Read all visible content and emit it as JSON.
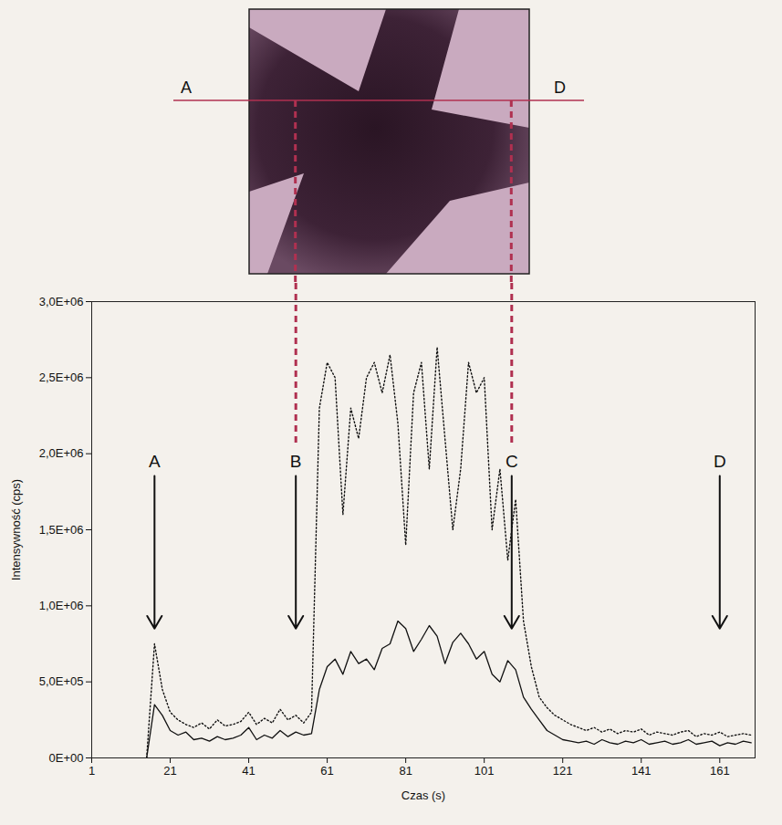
{
  "chart_data": {
    "type": "line",
    "x_label": "Czas (s)",
    "y_label": "Intensywność (cps)",
    "x": [
      15,
      17,
      19,
      21,
      23,
      25,
      27,
      29,
      31,
      33,
      35,
      37,
      39,
      41,
      43,
      45,
      47,
      49,
      51,
      53,
      55,
      57,
      59,
      61,
      63,
      65,
      67,
      69,
      71,
      73,
      75,
      77,
      79,
      81,
      83,
      85,
      87,
      89,
      91,
      93,
      95,
      97,
      99,
      101,
      103,
      105,
      107,
      109,
      111,
      113,
      115,
      117,
      119,
      121,
      123,
      125,
      127,
      129,
      131,
      133,
      135,
      137,
      139,
      141,
      143,
      145,
      147,
      149,
      151,
      153,
      155,
      157,
      159,
      161,
      163,
      165,
      167,
      169
    ],
    "series": [
      {
        "color": "#111111",
        "line_style": "dotted",
        "values": [
          0,
          750000,
          450000,
          300000,
          250000,
          220000,
          200000,
          230000,
          190000,
          250000,
          210000,
          220000,
          240000,
          300000,
          220000,
          260000,
          230000,
          320000,
          250000,
          280000,
          230000,
          300000,
          2300000,
          2600000,
          2500000,
          1600000,
          2300000,
          2100000,
          2500000,
          2600000,
          2400000,
          2650000,
          2200000,
          1400000,
          2400000,
          2600000,
          1900000,
          2700000,
          2100000,
          1500000,
          1900000,
          2600000,
          2400000,
          2500000,
          1500000,
          1900000,
          1300000,
          1700000,
          900000,
          600000,
          400000,
          330000,
          280000,
          250000,
          220000,
          200000,
          180000,
          200000,
          170000,
          190000,
          160000,
          180000,
          170000,
          190000,
          150000,
          170000,
          160000,
          150000,
          170000,
          180000,
          140000,
          160000,
          150000,
          170000,
          140000,
          150000,
          160000,
          150000
        ]
      },
      {
        "color": "#111111",
        "line_style": "solid",
        "values": [
          0,
          350000,
          280000,
          180000,
          150000,
          170000,
          120000,
          130000,
          110000,
          140000,
          120000,
          130000,
          150000,
          200000,
          120000,
          150000,
          130000,
          180000,
          140000,
          170000,
          150000,
          160000,
          450000,
          600000,
          650000,
          550000,
          700000,
          620000,
          650000,
          580000,
          720000,
          750000,
          900000,
          850000,
          700000,
          780000,
          870000,
          800000,
          620000,
          760000,
          820000,
          750000,
          650000,
          700000,
          550000,
          500000,
          640000,
          580000,
          400000,
          320000,
          250000,
          180000,
          150000,
          120000,
          110000,
          100000,
          110000,
          90000,
          120000,
          100000,
          90000,
          110000,
          100000,
          120000,
          90000,
          100000,
          110000,
          90000,
          100000,
          120000,
          90000,
          100000,
          110000,
          80000,
          100000,
          90000,
          110000,
          100000
        ]
      }
    ],
    "xlim": [
      1,
      170
    ],
    "xticks": [
      1,
      21,
      41,
      61,
      81,
      101,
      121,
      141,
      161
    ],
    "ylim": [
      0,
      3000000
    ],
    "yticks": [
      {
        "value": 0,
        "label": "0E+00"
      },
      {
        "value": 500000,
        "label": "5,0E+05"
      },
      {
        "value": 1000000,
        "label": "1,0E+06"
      },
      {
        "value": 1500000,
        "label": "1,5E+06"
      },
      {
        "value": 2000000,
        "label": "2,0E+06"
      },
      {
        "value": 2500000,
        "label": "2,5E+06"
      },
      {
        "value": 3000000,
        "label": "3,0E+06"
      }
    ],
    "grid": false,
    "annotations": [
      {
        "text": "A",
        "x": 17,
        "y": 1950000,
        "arrow_to": 850000
      },
      {
        "text": "B",
        "x": 53,
        "y": 1950000,
        "arrow_to": 850000
      },
      {
        "text": "C",
        "x": 108,
        "y": 1950000,
        "arrow_to": 850000
      },
      {
        "text": "D",
        "x": 161,
        "y": 1950000,
        "arrow_to": 850000
      }
    ]
  },
  "image_panel": {
    "labels": [
      "A",
      "D"
    ],
    "marked_times": [
      53,
      108
    ]
  }
}
